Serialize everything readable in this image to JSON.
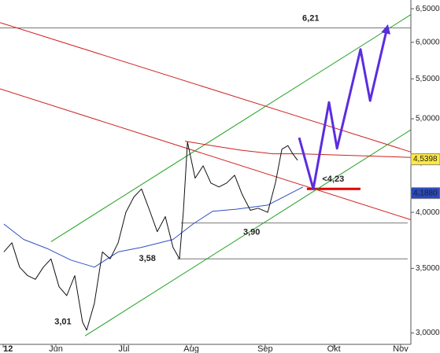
{
  "chart_data": {
    "type": "line",
    "log_scale": true,
    "xlim": [
      0,
      128
    ],
    "ylim": [
      2.92,
      6.6
    ],
    "yticks": [
      {
        "value": 3,
        "label": "3,0000"
      },
      {
        "value": 3.5,
        "label": "3,5000"
      },
      {
        "value": 4,
        "label": "4,0000"
      },
      {
        "value": 4.5,
        "label": "4,5000"
      },
      {
        "value": 5,
        "label": "5,0000"
      },
      {
        "value": 5.5,
        "label": "5,5000"
      },
      {
        "value": 6,
        "label": "6,0000"
      },
      {
        "value": 6.5,
        "label": "6,5000"
      }
    ],
    "xticks": [
      {
        "value": 1,
        "label": "12"
      },
      {
        "value": 17.4,
        "label": "Jun"
      },
      {
        "value": 38.6,
        "label": "Jul"
      },
      {
        "value": 59.6,
        "label": "Aug"
      },
      {
        "value": 82.6,
        "label": "Sep"
      },
      {
        "value": 104,
        "label": "Okt"
      },
      {
        "value": 124.8,
        "label": "Nov"
      }
    ],
    "series": [
      {
        "color": "#d02020",
        "x": [
          0,
          128
        ],
        "values": [
          6.29,
          4.62
        ]
      },
      {
        "color": "#d02020",
        "x": [
          0,
          128
        ],
        "values": [
          5.37,
          3.93
        ]
      },
      {
        "color": "#22a022",
        "x": [
          26.5,
          128
        ],
        "values": [
          2.98,
          4.87
        ]
      },
      {
        "color": "#22a022",
        "x": [
          15.9,
          128
        ],
        "values": [
          3.73,
          6.41
        ]
      },
      {
        "color": "#3050c0",
        "x": [
          1.2,
          7.4,
          14.7,
          22.1,
          29.4,
          36.8,
          44.1,
          53.9,
          60.1,
          66.2,
          73.6,
          83.4,
          94.4
        ],
        "values": [
          3.89,
          3.75,
          3.67,
          3.57,
          3.51,
          3.64,
          3.68,
          3.75,
          3.89,
          4.01,
          4.03,
          4.07,
          4.25
        ]
      },
      {
        "color": "#d02020",
        "x": [
          57.6,
          66,
          75,
          85,
          93.2,
          128
        ],
        "values": [
          4.74,
          4.69,
          4.64,
          4.6,
          4.6,
          4.56
        ]
      },
      {
        "color": "#111111",
        "x": [
          1.2,
          3.7,
          6.1,
          8.6,
          11,
          13.5,
          15.9,
          18.4,
          20.8,
          23.3,
          25.7,
          27,
          29.4,
          31.9,
          34.3,
          36.8,
          39.2,
          41.7,
          44.1,
          46.6,
          49,
          51.5,
          53.9,
          55.9,
          57.1,
          58.4,
          60.8,
          63.3,
          65.7,
          68.2,
          70.6,
          73.1,
          75.5,
          78,
          80.4,
          83.4,
          85.8,
          87.8,
          89.7,
          91.2,
          92.7
        ],
        "values": [
          3.64,
          3.72,
          3.51,
          3.44,
          3.41,
          3.51,
          3.58,
          3.35,
          3.28,
          3.44,
          3.08,
          3.02,
          3.22,
          3.64,
          3.58,
          3.72,
          4.0,
          4.15,
          4.23,
          4.02,
          3.82,
          3.96,
          3.68,
          3.58,
          4.0,
          4.73,
          4.34,
          4.47,
          4.29,
          4.25,
          4.29,
          4.37,
          4.17,
          4.02,
          4.04,
          4.0,
          4.29,
          4.65,
          4.69,
          4.6,
          4.53
        ]
      },
      {
        "color": "#5a2de0",
        "arrow": true,
        "x": [
          93.2,
          97.6,
          102.5,
          105,
          112.3,
          115.3,
          120.6
        ],
        "values": [
          4.78,
          4.23,
          5.2,
          4.66,
          5.9,
          5.22,
          6.21
        ]
      }
    ],
    "levels": [
      {
        "y": 6.21,
        "x": [
          0,
          128
        ],
        "color": "#777777",
        "style": "thin"
      },
      {
        "y": 3.9,
        "x": [
          56.4,
          127
        ],
        "color": "#777777",
        "style": "thin"
      },
      {
        "y": 3.58,
        "x": [
          55.2,
          127
        ],
        "color": "#777777",
        "style": "thin"
      },
      {
        "y": 4.23,
        "x": [
          95.6,
          112.3
        ],
        "color": "#e00000",
        "style": "thick"
      }
    ],
    "annotations": [
      {
        "text": "6,21",
        "x": 96.8,
        "y": 6.21,
        "color": "#3050c0",
        "position": "above"
      },
      {
        "text": "<4,23",
        "x": 103.8,
        "y": 4.23,
        "color": "#e00000",
        "position": "above"
      },
      {
        "text": "3,90",
        "x": 78.4,
        "y": 3.9,
        "color": "#888888",
        "position": "below"
      },
      {
        "text": "3,58",
        "x": 50,
        "y": 3.58,
        "color": "#888888",
        "position": "left"
      },
      {
        "text": "3,01",
        "x": 19.6,
        "y": 3.01,
        "color": "#888888",
        "position": "above"
      }
    ],
    "markers": [
      {
        "value": 4.5398,
        "label": "4,5398",
        "color": "#d02020",
        "background": "#ffe840"
      },
      {
        "value": 4.188,
        "label": "4,1880",
        "color": "#ffffff",
        "background": "#2848c0"
      }
    ]
  }
}
